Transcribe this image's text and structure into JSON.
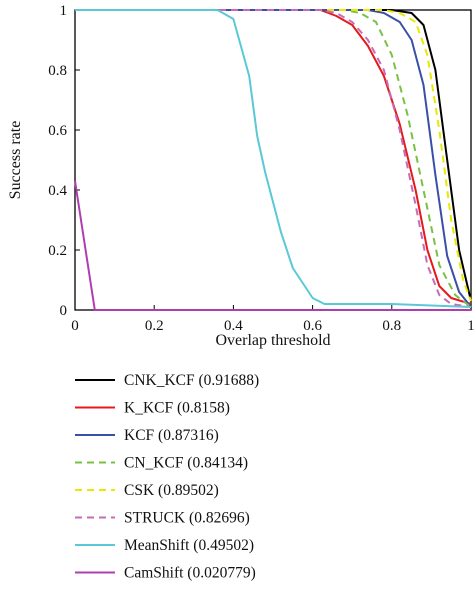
{
  "chart_data": {
    "type": "line",
    "xlabel": "Overlap threshold",
    "ylabel": "Success rate",
    "xlim": [
      0,
      1
    ],
    "ylim": [
      0,
      1
    ],
    "xticks": [
      "0",
      "0.2",
      "0.4",
      "0.6",
      "0.8",
      "1"
    ],
    "yticks": [
      "0",
      "0.2",
      "0.4",
      "0.6",
      "0.8",
      "1"
    ],
    "grid": false,
    "legend_position": "below",
    "series": [
      {
        "name": "CNK_KCF (0.91688)",
        "color": "#000000",
        "dash": "solid",
        "x": [
          0,
          0.8,
          0.85,
          0.88,
          0.91,
          0.94,
          0.97,
          1.0
        ],
        "y": [
          1,
          1,
          0.99,
          0.95,
          0.8,
          0.5,
          0.2,
          0.03
        ]
      },
      {
        "name": "K_KCF (0.8158)",
        "color": "#e41a1c",
        "dash": "solid",
        "x": [
          0,
          0.62,
          0.66,
          0.7,
          0.74,
          0.78,
          0.82,
          0.86,
          0.89,
          0.92,
          0.95,
          1.0
        ],
        "y": [
          1,
          1,
          0.98,
          0.95,
          0.88,
          0.78,
          0.62,
          0.4,
          0.2,
          0.08,
          0.04,
          0.02
        ]
      },
      {
        "name": "KCF (0.87316)",
        "color": "#3a4fa8",
        "dash": "solid",
        "x": [
          0,
          0.74,
          0.78,
          0.82,
          0.85,
          0.88,
          0.91,
          0.94,
          0.97,
          1.0
        ],
        "y": [
          1,
          1,
          0.99,
          0.96,
          0.9,
          0.75,
          0.45,
          0.18,
          0.06,
          0.01
        ]
      },
      {
        "name": "CN_KCF (0.84134)",
        "color": "#7ac143",
        "dash": "dashed",
        "x": [
          0,
          0.68,
          0.72,
          0.76,
          0.8,
          0.84,
          0.88,
          0.92,
          0.96,
          1.0
        ],
        "y": [
          1,
          1,
          0.99,
          0.96,
          0.85,
          0.65,
          0.4,
          0.15,
          0.05,
          0.01
        ]
      },
      {
        "name": "CSK (0.89502)",
        "color": "#e8e800",
        "dash": "dashed",
        "x": [
          0,
          0.78,
          0.82,
          0.86,
          0.89,
          0.92,
          0.95,
          0.98,
          1.0
        ],
        "y": [
          1,
          1,
          0.99,
          0.96,
          0.85,
          0.6,
          0.3,
          0.1,
          0.03
        ]
      },
      {
        "name": "STRUCK (0.82696)",
        "color": "#c86bb6",
        "dash": "dashed",
        "x": [
          0,
          0.62,
          0.66,
          0.7,
          0.74,
          0.78,
          0.82,
          0.86,
          0.89,
          0.92,
          0.95,
          1.0
        ],
        "y": [
          1,
          1,
          0.99,
          0.96,
          0.9,
          0.8,
          0.6,
          0.35,
          0.15,
          0.05,
          0.02,
          0.01
        ]
      },
      {
        "name": "MeanShift (0.49502)",
        "color": "#5bc8d6",
        "dash": "solid",
        "x": [
          0,
          0.36,
          0.4,
          0.44,
          0.46,
          0.48,
          0.5,
          0.52,
          0.55,
          0.58,
          0.6,
          0.63,
          0.8,
          1.0
        ],
        "y": [
          1,
          1,
          0.97,
          0.78,
          0.58,
          0.46,
          0.36,
          0.26,
          0.14,
          0.08,
          0.04,
          0.02,
          0.02,
          0.01
        ]
      },
      {
        "name": "CamShift (0.020779)",
        "color": "#b03db0",
        "dash": "solid",
        "x": [
          0,
          0.05,
          1.0
        ],
        "y": [
          0.43,
          0,
          0
        ]
      }
    ]
  }
}
